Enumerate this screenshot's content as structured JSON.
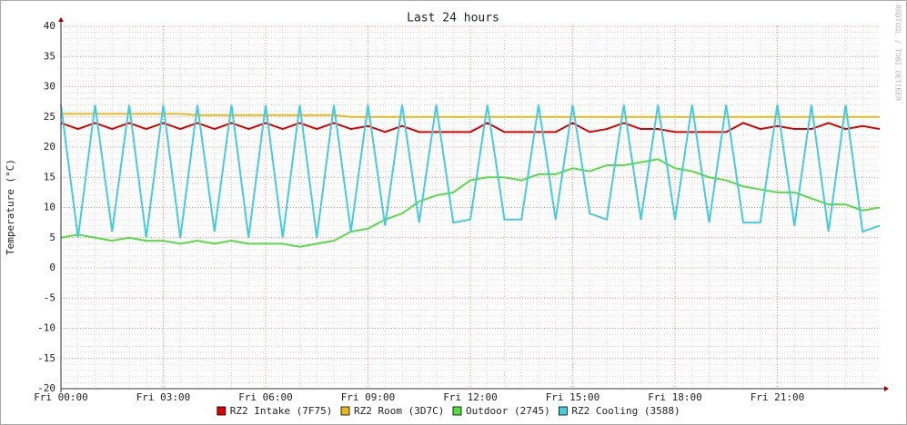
{
  "chart_data": {
    "type": "line",
    "title": "Last 24 hours",
    "y_label": "Temperature (°C)",
    "watermark": "RRDTOOL / TOBI OETIKER",
    "x": [
      0,
      0.5,
      1,
      1.5,
      2,
      2.5,
      3,
      3.5,
      4,
      4.5,
      5,
      5.5,
      6,
      6.5,
      7,
      7.5,
      8,
      8.5,
      9,
      9.5,
      10,
      10.5,
      11,
      11.5,
      12,
      12.5,
      13,
      13.5,
      14,
      14.5,
      15,
      15.5,
      16,
      16.5,
      17,
      17.5,
      18,
      18.5,
      19,
      19.5,
      20,
      20.5,
      21,
      21.5,
      22,
      22.5,
      23,
      23.5,
      24
    ],
    "xlim": [
      0,
      24
    ],
    "xticks": [
      {
        "value": 0,
        "label": "Fri 00:00"
      },
      {
        "value": 3,
        "label": "Fri 03:00"
      },
      {
        "value": 6,
        "label": "Fri 06:00"
      },
      {
        "value": 9,
        "label": "Fri 09:00"
      },
      {
        "value": 12,
        "label": "Fri 12:00"
      },
      {
        "value": 15,
        "label": "Fri 15:00"
      },
      {
        "value": 18,
        "label": "Fri 18:00"
      },
      {
        "value": 21,
        "label": "Fri 21:00"
      }
    ],
    "ylim": [
      -20,
      40
    ],
    "yticks": [
      -20,
      -15,
      -10,
      -5,
      0,
      5,
      10,
      15,
      20,
      25,
      30,
      35,
      40
    ],
    "grid": true,
    "series": [
      {
        "name": "RZ2 Intake (7F75)",
        "color": "#dd0000",
        "values": [
          24,
          23,
          24,
          23,
          24,
          23,
          24,
          23,
          24,
          23,
          24,
          23,
          24,
          23,
          24,
          23,
          24,
          23,
          23.5,
          22.5,
          23.5,
          22.5,
          22.5,
          22.5,
          22.5,
          24,
          22.5,
          22.5,
          22.5,
          22.5,
          24,
          22.5,
          23,
          24,
          23,
          23,
          22.5,
          22.5,
          22.5,
          22.5,
          24,
          23,
          23.5,
          23,
          23,
          24,
          23,
          23.5,
          23
        ]
      },
      {
        "name": "RZ2 Room (3D7C)",
        "color": "#e6b820",
        "values": [
          25.5,
          25.5,
          25.5,
          25.5,
          25.5,
          25.5,
          25.5,
          25.5,
          25.3,
          25.3,
          25.3,
          25.3,
          25.3,
          25.3,
          25.3,
          25.3,
          25.3,
          25,
          25,
          25,
          25,
          25,
          25,
          25,
          25,
          25,
          25,
          25,
          25,
          25,
          25,
          25,
          25,
          25,
          25,
          25,
          25,
          25,
          25,
          25,
          25,
          25,
          25,
          25,
          25,
          25,
          25,
          25,
          25
        ]
      },
      {
        "name": "Outdoor (2745)",
        "color": "#55dd44",
        "values": [
          5,
          5.5,
          5,
          4.5,
          5,
          4.5,
          4.5,
          4,
          4.5,
          4,
          4.5,
          4,
          4,
          4,
          3.5,
          4,
          4.5,
          6,
          6.5,
          8,
          9,
          11,
          12,
          12.5,
          14.5,
          15,
          15,
          14.5,
          15.5,
          15.5,
          16.5,
          16,
          17,
          17,
          17.5,
          18,
          16.5,
          16,
          15,
          14.5,
          13.5,
          13,
          12.5,
          12.5,
          11.5,
          10.5,
          10.5,
          9.5,
          10
        ]
      },
      {
        "name": "RZ2 Cooling (3588)",
        "color": "#44ccdd",
        "values": [
          27,
          5,
          27,
          6,
          27,
          5,
          27,
          5,
          27,
          6,
          27,
          5,
          27,
          5,
          27,
          5,
          27,
          6,
          27,
          7,
          27,
          7.5,
          27,
          7.5,
          8,
          27,
          8,
          8,
          27,
          8,
          27,
          9,
          8,
          27,
          8,
          27,
          8,
          27,
          7.5,
          27,
          7.5,
          7.5,
          27,
          7,
          27,
          6,
          27,
          6,
          7
        ]
      }
    ]
  }
}
